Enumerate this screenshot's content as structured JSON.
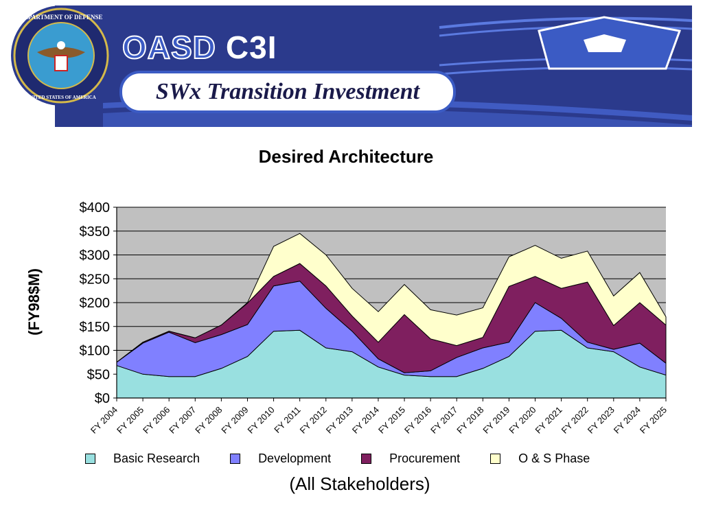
{
  "header": {
    "seal_text_top": "DEPARTMENT OF DEFENSE",
    "seal_text_bottom": "UNITED STATES OF AMERICA",
    "brand_oasd": "OASD",
    "brand_c3i": "C3I",
    "slide_title": "SWx Transition Investment",
    "banner_color": "#2b3a8c",
    "accent_color": "#3b5bc4"
  },
  "chart_data": {
    "type": "area",
    "stacked": true,
    "title": "Desired Architecture",
    "ylabel": "(FY98$M)",
    "caption": "(All Stakeholders)",
    "ylim": [
      0,
      400
    ],
    "yticks": [
      0,
      50,
      100,
      150,
      200,
      250,
      300,
      350,
      400
    ],
    "ytick_labels": [
      "$0",
      "$50",
      "$100",
      "$150",
      "$200",
      "$250",
      "$300",
      "$350",
      "$400"
    ],
    "grid": true,
    "plot_background": "#c0c0c0",
    "legend_position": "bottom",
    "categories": [
      "FY 2004",
      "FY 2005",
      "FY 2006",
      "FY 2007",
      "FY 2008",
      "FY 2009",
      "FY 2010",
      "FY 2011",
      "FY 2012",
      "FY 2013",
      "FY 2014",
      "FY 2015",
      "FY 2016",
      "FY 2017",
      "FY 2018",
      "FY 2019",
      "FY 2020",
      "FY 2021",
      "FY 2022",
      "FY 2023",
      "FY 2024",
      "FY 2025"
    ],
    "series": [
      {
        "name": "Basic Research",
        "color": "#99e0e0",
        "values": [
          68,
          50,
          45,
          45,
          62,
          87,
          140,
          142,
          105,
          97,
          65,
          48,
          45,
          45,
          62,
          87,
          140,
          142,
          105,
          97,
          65,
          48
        ]
      },
      {
        "name": "Development",
        "color": "#8080ff",
        "values": [
          7,
          65,
          93,
          71,
          71,
          67,
          95,
          103,
          83,
          43,
          17,
          5,
          12,
          40,
          43,
          30,
          60,
          25,
          12,
          5,
          50,
          25
        ]
      },
      {
        "name": "Procurement",
        "color": "#7f1f5f",
        "values": [
          0,
          2,
          2,
          10,
          20,
          45,
          20,
          37,
          47,
          32,
          35,
          122,
          67,
          25,
          22,
          117,
          55,
          63,
          126,
          50,
          85,
          80
        ]
      },
      {
        "name": "O & S Phase",
        "color": "#ffffcc",
        "values": [
          0,
          0,
          0,
          0,
          0,
          1,
          63,
          63,
          65,
          58,
          64,
          63,
          61,
          64,
          62,
          62,
          65,
          63,
          65,
          62,
          63,
          17
        ]
      }
    ]
  }
}
